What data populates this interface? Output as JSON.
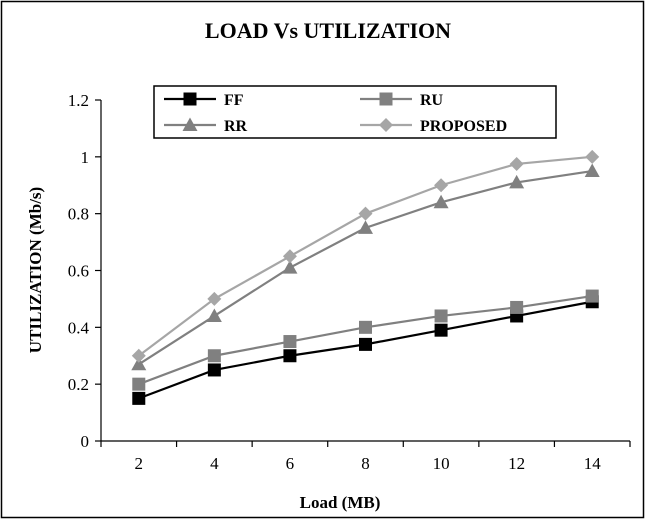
{
  "chart_data": {
    "type": "line",
    "title": "LOAD Vs UTILIZATION",
    "xlabel": "Load (MB)",
    "ylabel": "UTILIZATION (Mb/s)",
    "x": [
      2,
      4,
      6,
      8,
      10,
      12,
      14
    ],
    "xlim": [
      1,
      15
    ],
    "ylim": [
      0,
      1.2
    ],
    "yticks": [
      "0",
      "0.2",
      "0.4",
      "0.6",
      "0.8",
      "1",
      "1.2"
    ],
    "xticks": [
      "2",
      "4",
      "6",
      "8",
      "10",
      "12",
      "14"
    ],
    "grid": false,
    "legend_position": "top",
    "series": [
      {
        "name": "FF",
        "marker": "square",
        "color": "#000000",
        "values": [
          0.15,
          0.25,
          0.3,
          0.34,
          0.39,
          0.44,
          0.49
        ]
      },
      {
        "name": "RU",
        "marker": "square",
        "color": "#808080",
        "values": [
          0.2,
          0.3,
          0.35,
          0.4,
          0.44,
          0.47,
          0.51
        ]
      },
      {
        "name": "RR",
        "marker": "triangle",
        "color": "#808080",
        "values": [
          0.27,
          0.44,
          0.61,
          0.75,
          0.84,
          0.91,
          0.95
        ]
      },
      {
        "name": "PROPOSED",
        "marker": "diamond",
        "color": "#a6a6a6",
        "values": [
          0.3,
          0.5,
          0.65,
          0.8,
          0.9,
          0.975,
          1.0
        ]
      }
    ]
  }
}
